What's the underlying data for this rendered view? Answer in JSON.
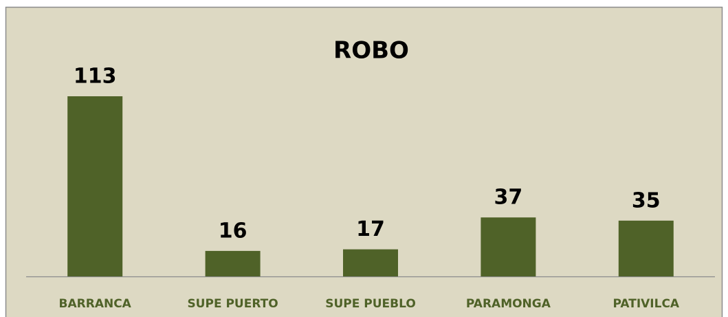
{
  "chart_data": {
    "type": "bar",
    "title": "ROBO",
    "categories": [
      "BARRANCA",
      "SUPE PUERTO",
      "SUPE PUEBLO",
      "PARAMONGA",
      "PATIVILCA"
    ],
    "values": [
      113,
      16,
      17,
      37,
      35
    ],
    "color": "#4f6228"
  }
}
